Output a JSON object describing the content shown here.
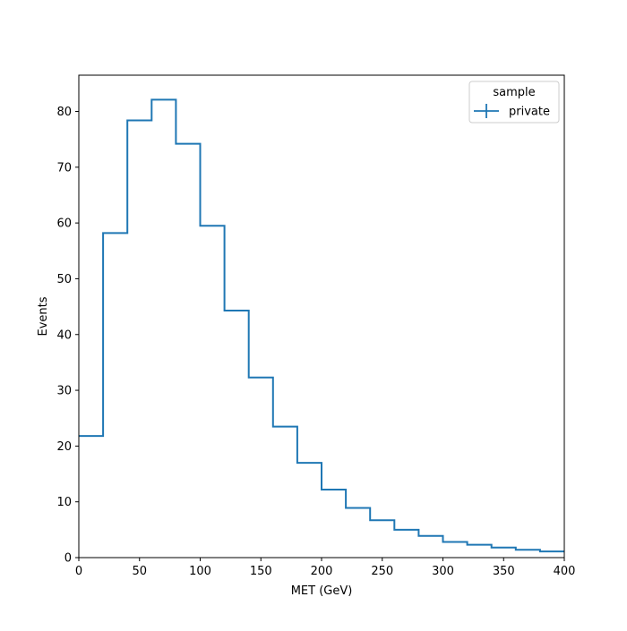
{
  "chart_data": {
    "type": "step-histogram",
    "xlabel": "MET (GeV)",
    "ylabel": "Events",
    "xlim": [
      0,
      400
    ],
    "ylim": [
      0,
      86.5
    ],
    "bin_edges": [
      0,
      20,
      40,
      60,
      80,
      100,
      120,
      140,
      160,
      180,
      200,
      220,
      240,
      260,
      280,
      300,
      320,
      340,
      360,
      380,
      400
    ],
    "x_ticks": [
      0,
      50,
      100,
      150,
      200,
      250,
      300,
      350,
      400
    ],
    "x_tick_labels": [
      "0",
      "50",
      "100",
      "150",
      "200",
      "250",
      "300",
      "350",
      "400"
    ],
    "y_ticks": [
      0,
      10,
      20,
      30,
      40,
      50,
      60,
      70,
      80
    ],
    "y_tick_labels": [
      "0",
      "10",
      "20",
      "30",
      "40",
      "50",
      "60",
      "70",
      "80"
    ],
    "grid": false,
    "legend": {
      "title": "sample",
      "placement": "top-right"
    },
    "series": [
      {
        "name": "private",
        "color": "#1f77b4",
        "values": [
          21.8,
          58.2,
          78.4,
          82.1,
          74.2,
          59.5,
          44.3,
          32.3,
          23.5,
          17.0,
          12.2,
          8.9,
          6.7,
          5.0,
          3.9,
          2.8,
          2.3,
          1.8,
          1.4,
          1.1
        ]
      }
    ]
  }
}
